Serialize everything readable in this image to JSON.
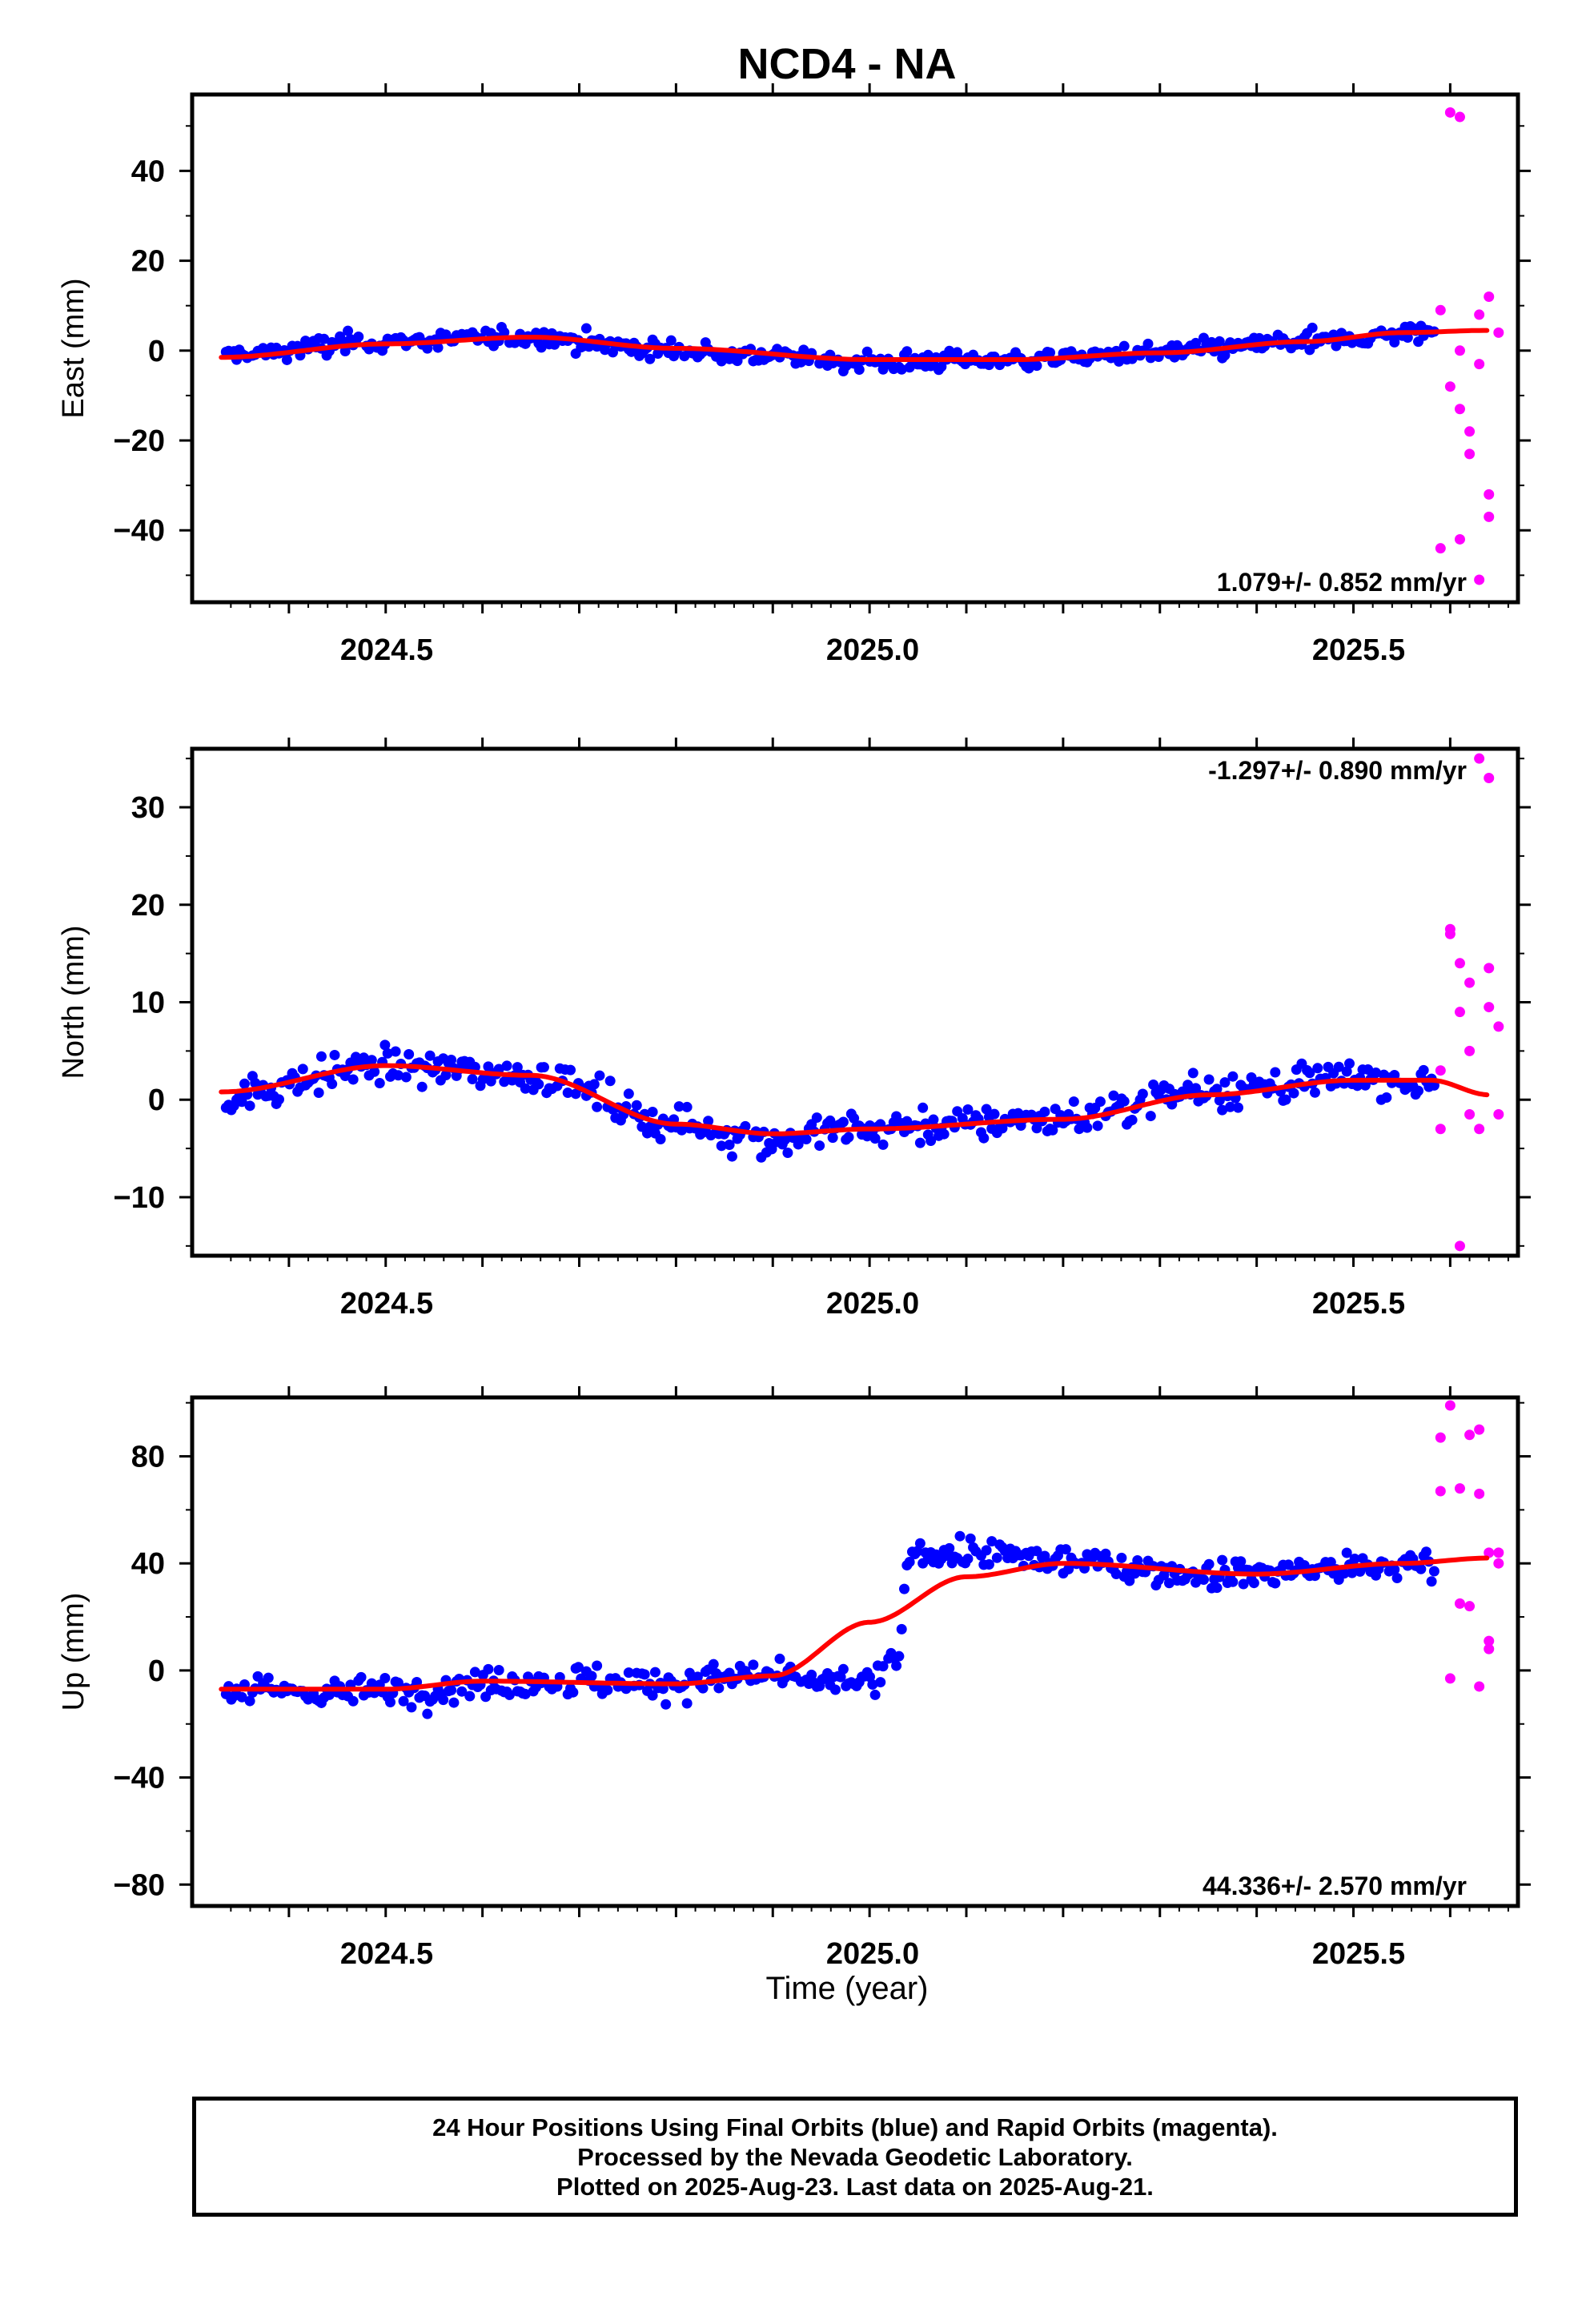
{
  "title": "NCD4 - NA",
  "xlabel": "Time (year)",
  "caption": {
    "line1": "24 Hour Positions Using Final Orbits (blue) and Rapid Orbits (magenta).",
    "line2": "Processed by the Nevada Geodetic Laboratory.",
    "line3": "Plotted on 2025-Aug-23. Last data on 2025-Aug-21."
  },
  "colors": {
    "final_orbits": "#0000ff",
    "rapid_orbits": "#ff00ff",
    "model_fit": "#ff0000",
    "frame": "#000000"
  },
  "x_ticks": [
    "2024.5",
    "2025.0",
    "2025.5"
  ],
  "chart_data": [
    {
      "type": "scatter",
      "panel": "east",
      "ylabel": "East (mm)",
      "y_ticks": [
        "40",
        "20",
        "0",
        "−20",
        "−40"
      ],
      "y_tick_values": [
        40,
        20,
        0,
        -20,
        -40
      ],
      "xlim": [
        2024.3,
        2025.67
      ],
      "ylim": [
        -56,
        57
      ],
      "rate_label": "1.079+/- 0.852 mm/yr",
      "rate_position": "bottom-right",
      "fit": {
        "x": [
          2024.33,
          2024.5,
          2024.65,
          2024.8,
          2025.0,
          2025.15,
          2025.3,
          2025.45,
          2025.55,
          2025.64
        ],
        "y": [
          -1.5,
          1.5,
          3,
          0.5,
          -2,
          -2,
          -0.5,
          2,
          4,
          4.5
        ]
      },
      "final_trend": {
        "x": [
          2024.33,
          2024.5,
          2024.65,
          2024.8,
          2025.0,
          2025.15,
          2025.3,
          2025.45,
          2025.58
        ],
        "y": [
          -1,
          2,
          3,
          0,
          -2.5,
          -2,
          -0.5,
          2,
          4
        ]
      },
      "final_noise": 1.5,
      "rapid": [
        [
          2025.59,
          -44
        ],
        [
          2025.59,
          9
        ],
        [
          2025.6,
          -8
        ],
        [
          2025.6,
          53
        ],
        [
          2025.61,
          -42
        ],
        [
          2025.61,
          52
        ],
        [
          2025.61,
          -13
        ],
        [
          2025.61,
          0
        ],
        [
          2025.62,
          -18
        ],
        [
          2025.62,
          -23
        ],
        [
          2025.63,
          8
        ],
        [
          2025.63,
          -51
        ],
        [
          2025.63,
          -3
        ],
        [
          2025.64,
          -37
        ],
        [
          2025.64,
          -32
        ],
        [
          2025.64,
          12
        ],
        [
          2025.65,
          4
        ]
      ]
    },
    {
      "type": "scatter",
      "panel": "north",
      "ylabel": "North (mm)",
      "y_ticks": [
        "30",
        "20",
        "10",
        "0",
        "−10"
      ],
      "y_tick_values": [
        30,
        20,
        10,
        0,
        -10
      ],
      "xlim": [
        2024.3,
        2025.67
      ],
      "ylim": [
        -16,
        36
      ],
      "rate_label": "-1.297+/- 0.890 mm/yr",
      "rate_position": "top-right",
      "fit": {
        "x": [
          2024.33,
          2024.5,
          2024.65,
          2024.8,
          2024.9,
          2025.0,
          2025.2,
          2025.35,
          2025.5,
          2025.58,
          2025.64
        ],
        "y": [
          0.8,
          3.5,
          2.5,
          -2.5,
          -3.5,
          -3,
          -2,
          0.5,
          2,
          2,
          0.5
        ]
      },
      "final_trend": {
        "x": [
          2024.33,
          2024.5,
          2024.65,
          2024.8,
          2024.9,
          2025.0,
          2025.2,
          2025.35,
          2025.5,
          2025.58
        ],
        "y": [
          0.5,
          3.5,
          2.5,
          -2.5,
          -4,
          -3,
          -2,
          1,
          2,
          2
        ]
      },
      "final_noise": 1.3,
      "rapid": [
        [
          2025.59,
          3
        ],
        [
          2025.59,
          -3
        ],
        [
          2025.6,
          17
        ],
        [
          2025.6,
          17.5
        ],
        [
          2025.61,
          14
        ],
        [
          2025.61,
          9
        ],
        [
          2025.61,
          -15
        ],
        [
          2025.62,
          -1.5
        ],
        [
          2025.62,
          5
        ],
        [
          2025.62,
          12
        ],
        [
          2025.63,
          35
        ],
        [
          2025.63,
          -3
        ],
        [
          2025.64,
          33
        ],
        [
          2025.64,
          13.5
        ],
        [
          2025.64,
          9.5
        ],
        [
          2025.65,
          7.5
        ],
        [
          2025.65,
          -1.5
        ]
      ]
    },
    {
      "type": "scatter",
      "panel": "up",
      "ylabel": "Up (mm)",
      "y_ticks": [
        "80",
        "40",
        "0",
        "−40",
        "−80"
      ],
      "y_tick_values": [
        80,
        40,
        0,
        -40,
        -80
      ],
      "xlim": [
        2024.3,
        2025.67
      ],
      "ylim": [
        -88,
        102
      ],
      "rate_label": "44.336+/- 2.570 mm/yr",
      "rate_position": "bottom-right",
      "fit": {
        "x": [
          2024.33,
          2024.5,
          2024.6,
          2024.8,
          2024.9,
          2025.0,
          2025.1,
          2025.2,
          2025.4,
          2025.55,
          2025.64
        ],
        "y": [
          -7,
          -7,
          -4,
          -5,
          -2,
          18,
          35,
          40,
          36,
          40,
          42
        ]
      },
      "final_trend": {
        "x": [
          2024.33,
          2024.5,
          2024.65,
          2024.8,
          2024.89,
          2024.92,
          2025.0,
          2025.03,
          2025.04,
          2025.1,
          2025.2,
          2025.35,
          2025.5,
          2025.59
        ],
        "y": [
          -8,
          -8,
          -4,
          -5,
          -1,
          -4,
          -4,
          3,
          44,
          44,
          41,
          36,
          38,
          40
        ]
      },
      "final_noise": 4,
      "rapid": [
        [
          2025.59,
          87
        ],
        [
          2025.59,
          67
        ],
        [
          2025.6,
          99
        ],
        [
          2025.6,
          -3
        ],
        [
          2025.61,
          68
        ],
        [
          2025.61,
          25
        ],
        [
          2025.62,
          24
        ],
        [
          2025.62,
          88
        ],
        [
          2025.63,
          90
        ],
        [
          2025.63,
          -6
        ],
        [
          2025.63,
          66
        ],
        [
          2025.64,
          8
        ],
        [
          2025.64,
          11
        ],
        [
          2025.64,
          44
        ],
        [
          2025.65,
          44
        ],
        [
          2025.65,
          40
        ]
      ]
    }
  ]
}
